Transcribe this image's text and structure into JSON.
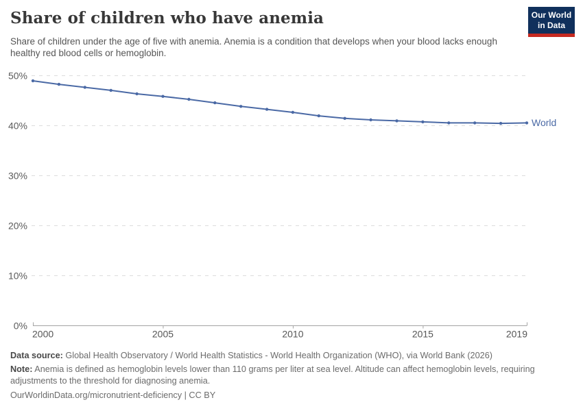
{
  "header": {
    "title": "Share of children who have anemia",
    "subtitle": "Share of children under the age of five with anemia. Anemia is a condition that develops when your blood lacks enough healthy red blood cells or hemoglobin.",
    "logo": {
      "line1": "Our World",
      "line2": "in Data",
      "bg_color": "#10305c",
      "bar_color": "#c62a21"
    }
  },
  "chart_data": {
    "type": "line",
    "title": "Share of children who have anemia",
    "x": [
      2000,
      2001,
      2002,
      2003,
      2004,
      2005,
      2006,
      2007,
      2008,
      2009,
      2010,
      2011,
      2012,
      2013,
      2014,
      2015,
      2016,
      2017,
      2018,
      2019
    ],
    "series": [
      {
        "name": "World",
        "color": "#4a69a5",
        "values": [
          48.9,
          48.2,
          47.6,
          47.0,
          46.3,
          45.8,
          45.2,
          44.5,
          43.8,
          43.2,
          42.6,
          41.9,
          41.4,
          41.1,
          40.9,
          40.7,
          40.5,
          40.5,
          40.4,
          40.5
        ]
      }
    ],
    "xlabel": "",
    "ylabel": "",
    "xlim": [
      2000,
      2019
    ],
    "ylim": [
      0,
      50
    ],
    "x_tick_labels": [
      "2000",
      "2005",
      "2010",
      "2015",
      "2019"
    ],
    "x_tick_years": [
      2000,
      2005,
      2010,
      2015,
      2019
    ],
    "y_tick_labels": [
      "0%",
      "10%",
      "20%",
      "30%",
      "40%",
      "50%"
    ],
    "y_tick_values": [
      0,
      10,
      20,
      30,
      40,
      50
    ],
    "grid": "horizontal-dashed",
    "gridline_color": "#dcdcdc",
    "axis_color": "#a3a3a3",
    "legend_position": "end-of-line",
    "end_label": "World"
  },
  "footer": {
    "data_source_label": "Data source:",
    "data_source_text": " Global Health Observatory / World Health Statistics - World Health Organization (WHO), via World Bank (2026)",
    "note_label": "Note:",
    "note_text": " Anemia is defined as hemoglobin levels lower than 110 grams per liter at sea level. Altitude can affect hemoglobin levels, requiring adjustments to the threshold for diagnosing anemia.",
    "url_text": "OurWorldinData.org/micronutrient-deficiency | CC BY"
  }
}
